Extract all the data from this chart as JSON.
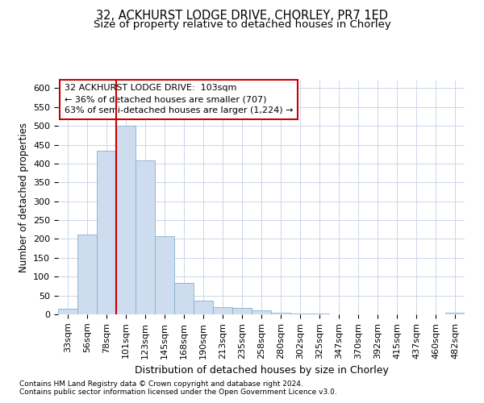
{
  "title_line1": "32, ACKHURST LODGE DRIVE, CHORLEY, PR7 1ED",
  "title_line2": "Size of property relative to detached houses in Chorley",
  "xlabel": "Distribution of detached houses by size in Chorley",
  "ylabel": "Number of detached properties",
  "footnote1": "Contains HM Land Registry data © Crown copyright and database right 2024.",
  "footnote2": "Contains public sector information licensed under the Open Government Licence v3.0.",
  "annotation_line1": "32 ACKHURST LODGE DRIVE:  103sqm",
  "annotation_line2": "← 36% of detached houses are smaller (707)",
  "annotation_line3": "63% of semi-detached houses are larger (1,224) →",
  "bar_color": "#cddcee",
  "bar_edge_color": "#8ab0d0",
  "vline_color": "#cc0000",
  "vline_x": 2.5,
  "categories": [
    "33sqm",
    "56sqm",
    "78sqm",
    "101sqm",
    "123sqm",
    "145sqm",
    "168sqm",
    "190sqm",
    "213sqm",
    "235sqm",
    "258sqm",
    "280sqm",
    "302sqm",
    "325sqm",
    "347sqm",
    "370sqm",
    "392sqm",
    "415sqm",
    "437sqm",
    "460sqm",
    "482sqm"
  ],
  "values": [
    15,
    212,
    435,
    500,
    408,
    207,
    83,
    37,
    19,
    17,
    11,
    5,
    2,
    2,
    0,
    0,
    0,
    0,
    0,
    0,
    4
  ],
  "ylim": [
    0,
    620
  ],
  "yticks": [
    0,
    50,
    100,
    150,
    200,
    250,
    300,
    350,
    400,
    450,
    500,
    550,
    600
  ],
  "background_color": "#ffffff",
  "grid_color": "#ccd6e8",
  "annotation_box_color": "#ffffff",
  "annotation_box_edge": "#cc0000",
  "title1_fontsize": 10.5,
  "title2_fontsize": 9.5,
  "xlabel_fontsize": 9,
  "ylabel_fontsize": 8.5,
  "tick_fontsize": 8,
  "annotation_fontsize": 8,
  "footnote_fontsize": 6.5
}
